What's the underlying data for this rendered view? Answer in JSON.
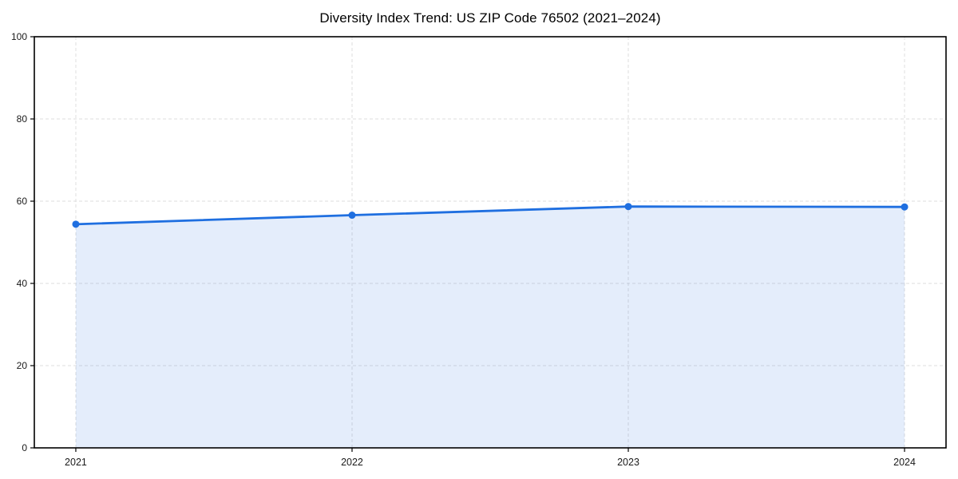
{
  "chart_data": {
    "type": "area",
    "title": "Diversity Index Trend: US ZIP Code 76502 (2021–2024)",
    "series_name": "Diversity Index",
    "x": [
      "2021",
      "2022",
      "2023",
      "2024"
    ],
    "values": [
      54.4,
      56.6,
      58.7,
      58.6
    ],
    "xlabel": "",
    "ylabel": "",
    "ylim": [
      0,
      100
    ],
    "yticks": [
      0,
      20,
      40,
      60,
      80,
      100
    ],
    "grid": true,
    "grid_style": "dashed",
    "legend_position": "none",
    "colors": {
      "line": "#1f6fe0",
      "marker": "#1f6fe0",
      "area_fill": "rgba(31,111,224,0.12)",
      "grid": "#dedede",
      "spine": "#000000",
      "tick_label": "#1a1a1a",
      "background": "#ffffff"
    }
  }
}
